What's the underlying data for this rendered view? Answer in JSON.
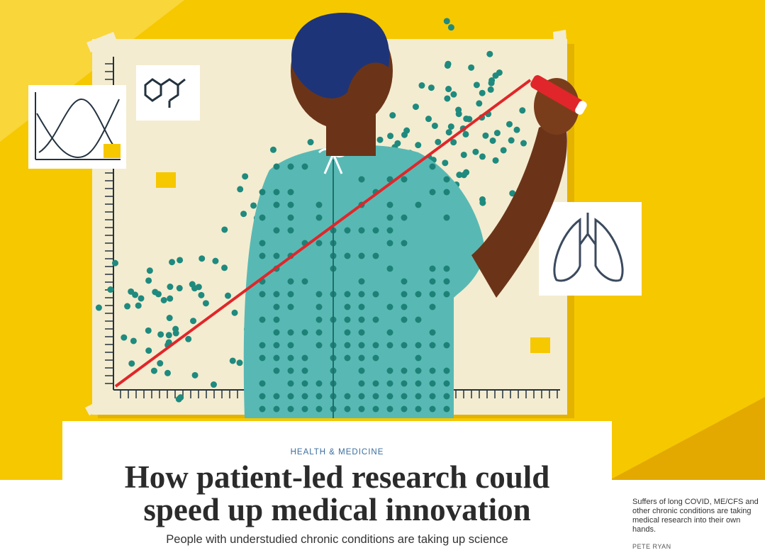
{
  "article": {
    "section": "HEALTH & MEDICINE",
    "title": "How patient-led research could speed up medical innovation",
    "subtitle": "People with understudied chronic conditions are taking up science",
    "image_caption": "Suffers of long COVID, ME/CFS and other chronic conditions are taking medical research into their own hands.",
    "image_credit": "PETE RYAN"
  }
}
